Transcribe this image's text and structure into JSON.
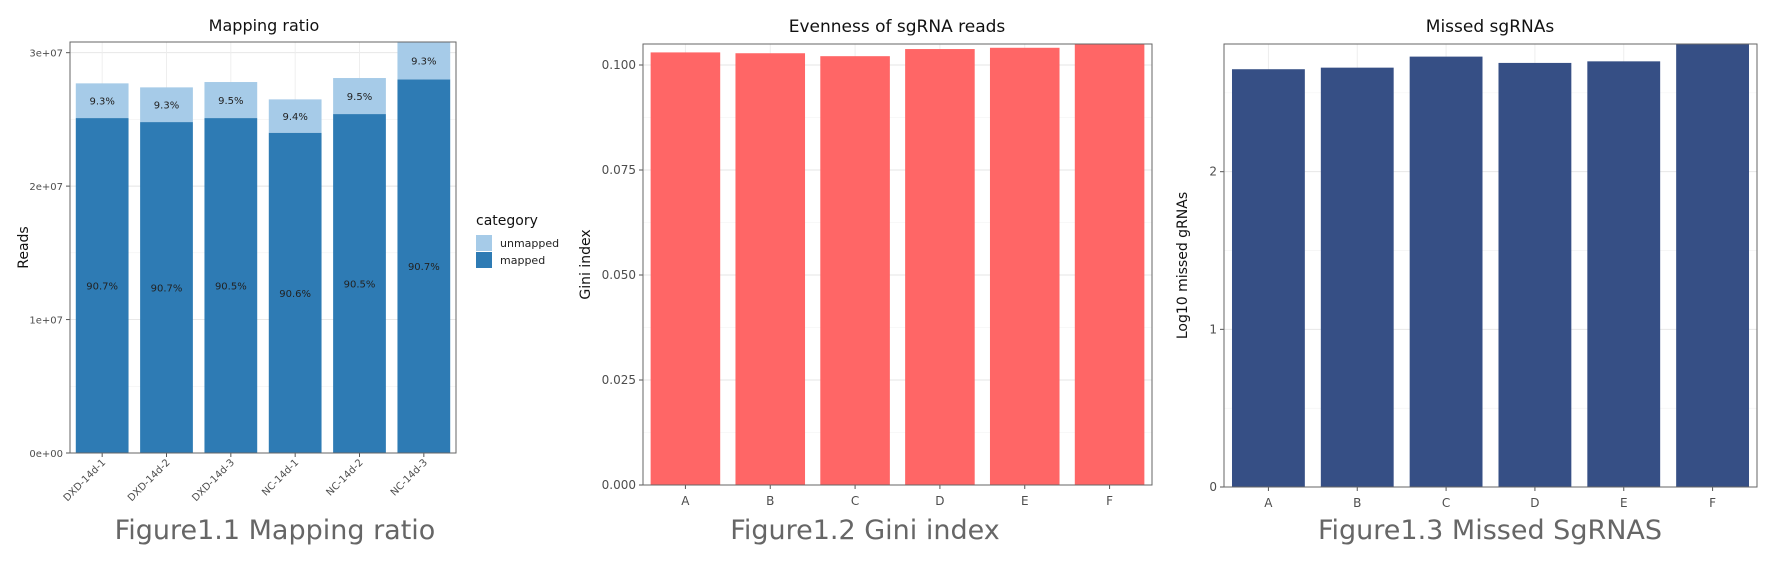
{
  "captions": [
    "Figure1.1 Mapping ratio",
    "Figure1.2 Gini index",
    "Figure1.3 Missed SgRNAS"
  ],
  "chart_data": [
    {
      "type": "bar",
      "stacked": true,
      "title": "Mapping ratio",
      "xlabel": "",
      "ylabel": "Reads",
      "ylim": [
        0,
        30800000
      ],
      "yticks": [
        0,
        10000000,
        20000000,
        30000000
      ],
      "ytick_labels": [
        "0e+00",
        "1e+07",
        "2e+07",
        "3e+07"
      ],
      "categories": [
        "DXD-14d-1",
        "DXD-14d-2",
        "DXD-14d-3",
        "NC-14d-1",
        "NC-14d-2",
        "NC-14d-3"
      ],
      "series": [
        {
          "name": "mapped",
          "color": "#2e7bb4",
          "values": [
            25100000,
            24800000,
            25100000,
            24000000,
            25400000,
            28000000
          ],
          "labels": [
            "90.7%",
            "90.7%",
            "90.5%",
            "90.6%",
            "90.5%",
            "90.7%"
          ]
        },
        {
          "name": "unmapped",
          "color": "#a6cbe8",
          "values": [
            2600000,
            2600000,
            2700000,
            2500000,
            2700000,
            2900000
          ],
          "labels": [
            "9.3%",
            "9.3%",
            "9.5%",
            "9.4%",
            "9.5%",
            "9.3%"
          ]
        }
      ],
      "legend": {
        "title": "category",
        "position": "right",
        "entries": [
          "unmapped",
          "mapped"
        ]
      },
      "grid": true
    },
    {
      "type": "bar",
      "title": "Evenness of sgRNA reads",
      "xlabel": "",
      "ylabel": "Gini index",
      "ylim": [
        0,
        0.105
      ],
      "yticks": [
        0,
        0.025,
        0.05,
        0.075,
        0.1
      ],
      "ytick_labels": [
        "0.000",
        "0.025",
        "0.050",
        "0.075",
        "0.100"
      ],
      "categories": [
        "A",
        "B",
        "C",
        "D",
        "E",
        "F"
      ],
      "values": [
        0.103,
        0.1028,
        0.1021,
        0.1038,
        0.1041,
        0.105
      ],
      "color": "#ff6666",
      "grid": true
    },
    {
      "type": "bar",
      "title": "Missed sgRNAs",
      "xlabel": "",
      "ylabel": "Log10 missed gRNAs",
      "ylim": [
        0,
        2.81
      ],
      "yticks": [
        0,
        1,
        2
      ],
      "ytick_labels": [
        "0",
        "1",
        "2"
      ],
      "categories": [
        "A",
        "B",
        "C",
        "D",
        "E",
        "F"
      ],
      "values": [
        2.65,
        2.66,
        2.73,
        2.69,
        2.7,
        2.81
      ],
      "color": "#364f85",
      "grid": true
    }
  ]
}
